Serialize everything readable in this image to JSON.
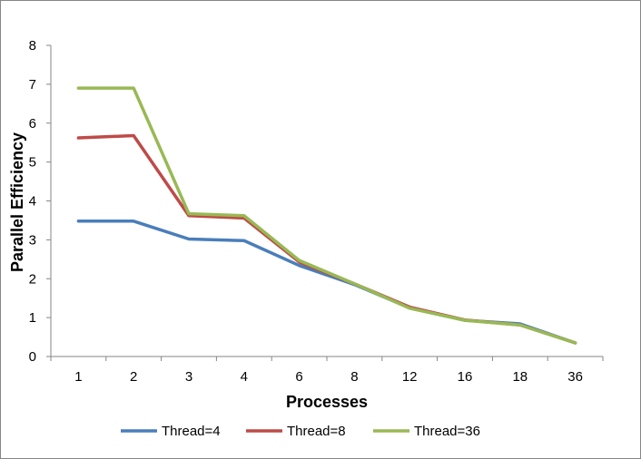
{
  "chart_data": {
    "type": "line",
    "title": "",
    "xlabel": "Processes",
    "ylabel": "Parallel Efficiency",
    "categories": [
      "1",
      "2",
      "3",
      "4",
      "6",
      "8",
      "12",
      "16",
      "18",
      "36"
    ],
    "ylim": [
      0,
      8
    ],
    "yticks": [
      "0",
      "1",
      "2",
      "3",
      "4",
      "5",
      "6",
      "7",
      "8"
    ],
    "grid": false,
    "legend_position": "bottom",
    "series": [
      {
        "name": "Thread=4",
        "color": "#4a7ebb",
        "values": [
          3.48,
          3.48,
          3.02,
          2.98,
          2.34,
          1.85,
          1.25,
          0.93,
          0.84,
          0.35
        ]
      },
      {
        "name": "Thread=8",
        "color": "#be4b48",
        "values": [
          5.62,
          5.68,
          3.62,
          3.56,
          2.43,
          1.87,
          1.27,
          0.94,
          0.81,
          0.35
        ]
      },
      {
        "name": "Thread=36",
        "color": "#98b954",
        "values": [
          6.9,
          6.9,
          3.67,
          3.62,
          2.47,
          1.87,
          1.24,
          0.93,
          0.81,
          0.35
        ]
      }
    ]
  }
}
